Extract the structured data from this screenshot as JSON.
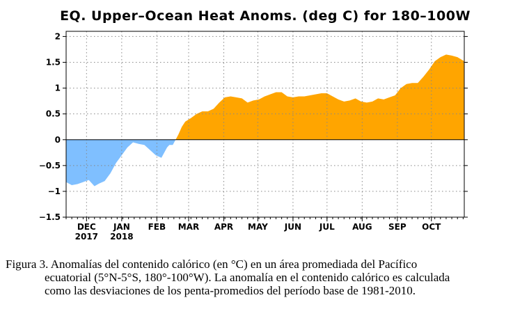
{
  "chart_data": {
    "type": "area",
    "title": "EQ. Upper–Ocean Heat Anoms. (deg C) for 180–100W",
    "xlabel": "",
    "ylabel": "",
    "ylim": [
      -1.5,
      2.1
    ],
    "yticks": [
      {
        "v": 2,
        "label": "2"
      },
      {
        "v": 1.5,
        "label": "1.5"
      },
      {
        "v": 1,
        "label": "1"
      },
      {
        "v": 0.5,
        "label": "0.5"
      },
      {
        "v": 0,
        "label": "0"
      },
      {
        "v": -0.5,
        "label": "−0.5"
      },
      {
        "v": -1,
        "label": "−1"
      },
      {
        "v": -1.5,
        "label": "−1.5"
      }
    ],
    "xrange": [
      "2017-11-13",
      "2018-10-30"
    ],
    "xticks": [
      {
        "date": "2017-12-01",
        "label": "DEC",
        "label2": "2017"
      },
      {
        "date": "2018-01-01",
        "label": "JAN",
        "label2": "2018"
      },
      {
        "date": "2018-02-01",
        "label": "FEB"
      },
      {
        "date": "2018-03-01",
        "label": "MAR"
      },
      {
        "date": "2018-04-01",
        "label": "APR"
      },
      {
        "date": "2018-05-01",
        "label": "MAY"
      },
      {
        "date": "2018-06-01",
        "label": "JUN"
      },
      {
        "date": "2018-07-01",
        "label": "JUL"
      },
      {
        "date": "2018-08-01",
        "label": "AUG"
      },
      {
        "date": "2018-09-01",
        "label": "SEP"
      },
      {
        "date": "2018-10-01",
        "label": "OCT"
      }
    ],
    "grid": true,
    "positive_color": "#FFA500",
    "negative_color": "#7FBFFF",
    "x": [
      "2017-11-13",
      "2017-11-18",
      "2017-11-23",
      "2017-11-28",
      "2017-12-03",
      "2017-12-08",
      "2017-12-12",
      "2017-12-17",
      "2017-12-22",
      "2017-12-27",
      "2018-01-01",
      "2018-01-06",
      "2018-01-11",
      "2018-01-16",
      "2018-01-21",
      "2018-01-26",
      "2018-01-31",
      "2018-02-05",
      "2018-02-10",
      "2018-02-12",
      "2018-02-15",
      "2018-02-20",
      "2018-02-23",
      "2018-02-26",
      "2018-03-03",
      "2018-03-08",
      "2018-03-13",
      "2018-03-18",
      "2018-03-23",
      "2018-03-28",
      "2018-04-02",
      "2018-04-07",
      "2018-04-12",
      "2018-04-17",
      "2018-04-22",
      "2018-04-27",
      "2018-05-02",
      "2018-05-07",
      "2018-05-12",
      "2018-05-17",
      "2018-05-22",
      "2018-05-27",
      "2018-06-01",
      "2018-06-06",
      "2018-06-11",
      "2018-06-16",
      "2018-06-21",
      "2018-06-26",
      "2018-07-01",
      "2018-07-06",
      "2018-07-11",
      "2018-07-16",
      "2018-07-21",
      "2018-07-26",
      "2018-07-31",
      "2018-08-05",
      "2018-08-10",
      "2018-08-15",
      "2018-08-20",
      "2018-08-25",
      "2018-08-30",
      "2018-09-04",
      "2018-09-09",
      "2018-09-14",
      "2018-09-19",
      "2018-09-24",
      "2018-09-29",
      "2018-10-04",
      "2018-10-09",
      "2018-10-14",
      "2018-10-19",
      "2018-10-24",
      "2018-10-30"
    ],
    "values": [
      -0.82,
      -0.88,
      -0.86,
      -0.82,
      -0.78,
      -0.9,
      -0.85,
      -0.8,
      -0.65,
      -0.45,
      -0.3,
      -0.15,
      -0.05,
      -0.08,
      -0.1,
      -0.2,
      -0.3,
      -0.35,
      -0.15,
      -0.1,
      -0.1,
      0.1,
      0.25,
      0.35,
      0.42,
      0.5,
      0.55,
      0.55,
      0.6,
      0.72,
      0.82,
      0.84,
      0.82,
      0.8,
      0.72,
      0.76,
      0.78,
      0.84,
      0.88,
      0.92,
      0.92,
      0.84,
      0.82,
      0.84,
      0.84,
      0.86,
      0.88,
      0.9,
      0.9,
      0.84,
      0.78,
      0.74,
      0.76,
      0.8,
      0.74,
      0.72,
      0.74,
      0.8,
      0.78,
      0.82,
      0.86,
      1.0,
      1.08,
      1.1,
      1.1,
      1.22,
      1.36,
      1.52,
      1.6,
      1.65,
      1.63,
      1.6,
      1.52
    ]
  },
  "caption": {
    "line1": "Figura 3. Anomalías del contenido calórico (en °C) en un área promediada del Pacífico",
    "line2": "ecuatorial (5°N-5°S, 180°-100°W). La anomalía en el contenido calórico es calculada",
    "line3": "como las desviaciones de los penta-promedios del período base de 1981-2010."
  }
}
